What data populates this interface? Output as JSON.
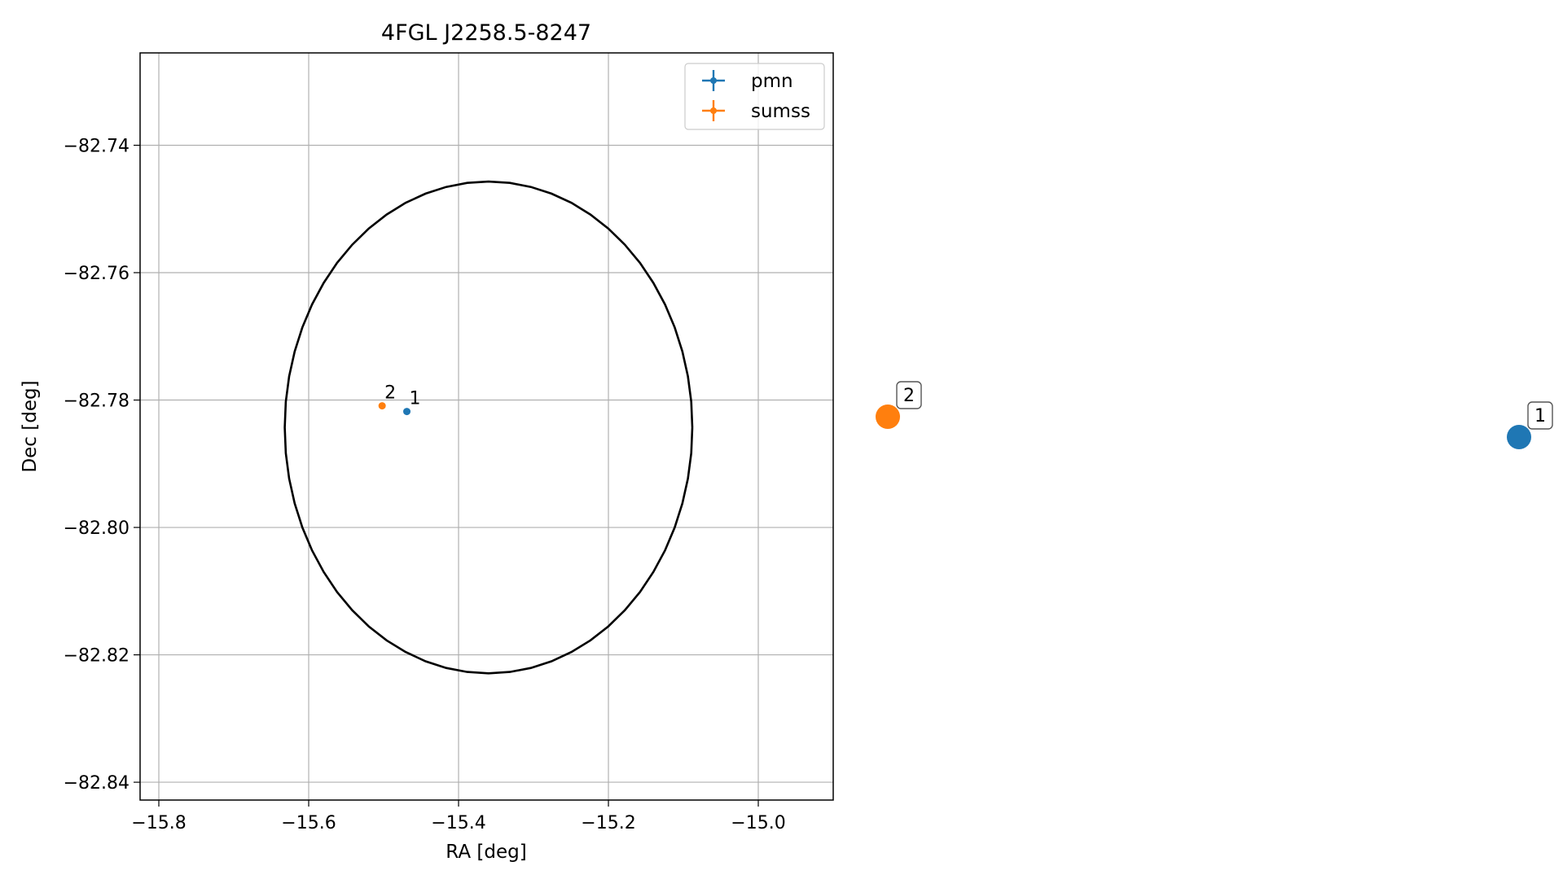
{
  "chart_data": {
    "type": "scatter",
    "title": "4FGL J2258.5-8247",
    "xlabel": "RA [deg]",
    "ylabel": "Dec [deg]",
    "xlim": [
      -15.825,
      -14.9
    ],
    "ylim": [
      -82.8428,
      -82.7255
    ],
    "xticks": [
      -15.8,
      -15.6,
      -15.4,
      -15.2,
      -15.0
    ],
    "yticks": [
      -82.74,
      -82.76,
      -82.78,
      -82.8,
      -82.82,
      -82.84
    ],
    "xtick_labels": [
      "−15.8",
      "−15.6",
      "−15.4",
      "−15.2",
      "−15.0"
    ],
    "ytick_labels": [
      "−82.74",
      "−82.76",
      "−82.78",
      "−82.80",
      "−82.82",
      "−82.84"
    ],
    "grid": true,
    "legend_position": "top-right",
    "ellipse": {
      "center": [
        -15.36,
        -82.7843
      ],
      "ra_semi_axis": 0.272,
      "dec_semi_axis": 0.0386,
      "color": "#000000"
    },
    "series": [
      {
        "name": "pmn",
        "color": "#1f77b4",
        "points": [
          {
            "x": -15.469,
            "y": -82.7818,
            "label": "1"
          }
        ]
      },
      {
        "name": "sumss",
        "color": "#ff7f0e",
        "points": [
          {
            "x": -15.502,
            "y": -82.7809,
            "label": "2"
          }
        ]
      }
    ],
    "outside_markers": [
      {
        "label": "2",
        "color": "#ff7f0e"
      },
      {
        "label": "1",
        "color": "#1f77b4"
      }
    ]
  }
}
